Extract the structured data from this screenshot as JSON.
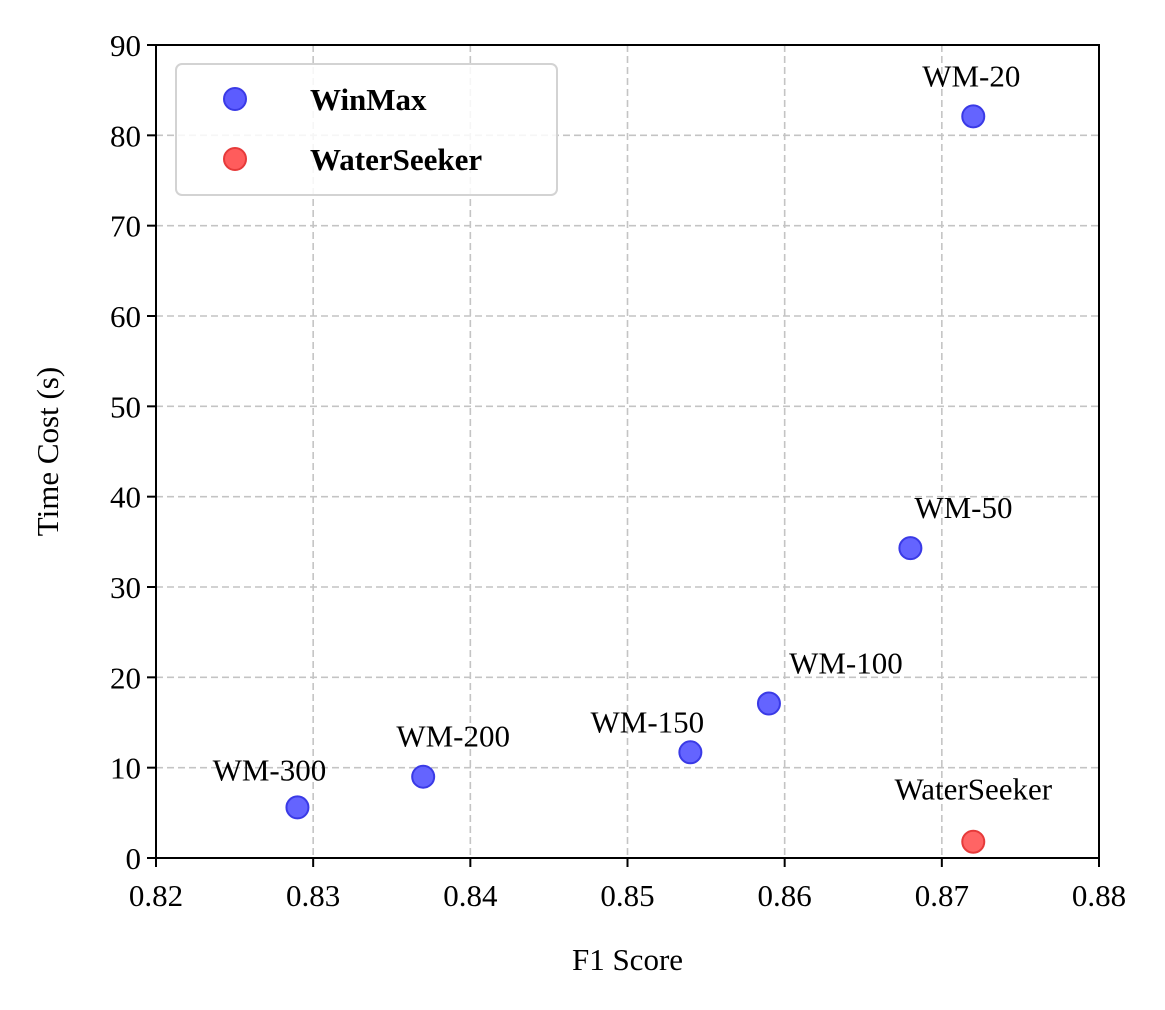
{
  "chart_data": {
    "type": "scatter",
    "title": "",
    "xlabel": "F1 Score",
    "ylabel": "Time Cost (s)",
    "xlim": [
      0.82,
      0.88
    ],
    "ylim": [
      0,
      90
    ],
    "xticks": [
      "0.82",
      "0.83",
      "0.84",
      "0.85",
      "0.86",
      "0.87",
      "0.88"
    ],
    "yticks": [
      "0",
      "10",
      "20",
      "30",
      "40",
      "50",
      "60",
      "70",
      "80",
      "90"
    ],
    "grid": true,
    "legend_position": "top-left",
    "series": [
      {
        "name": "WinMax",
        "color": "#5c5cff",
        "edge_color": "#3a3ae6",
        "points": [
          {
            "label": "WM-20",
            "x": 0.872,
            "y": 82.1
          },
          {
            "label": "WM-50",
            "x": 0.868,
            "y": 34.3
          },
          {
            "label": "WM-100",
            "x": 0.859,
            "y": 17.1
          },
          {
            "label": "WM-150",
            "x": 0.854,
            "y": 11.7
          },
          {
            "label": "WM-200",
            "x": 0.837,
            "y": 9.0
          },
          {
            "label": "WM-300",
            "x": 0.829,
            "y": 5.6
          }
        ]
      },
      {
        "name": "WaterSeeker",
        "color": "#ff5c5c",
        "edge_color": "#e63a3a",
        "points": [
          {
            "label": "WaterSeeker",
            "x": 0.872,
            "y": 1.8
          }
        ]
      }
    ]
  }
}
